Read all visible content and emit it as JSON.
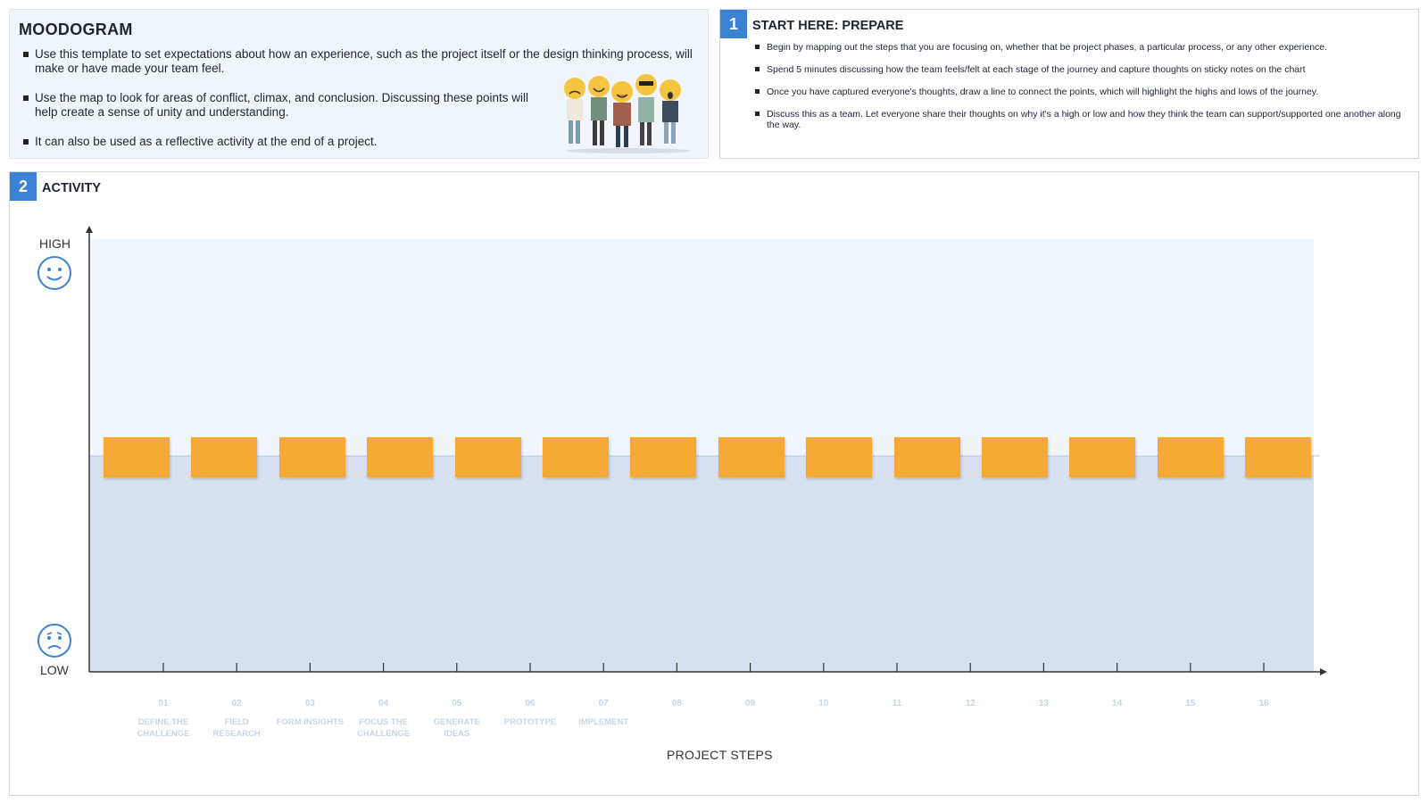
{
  "intro": {
    "title": "MOODOGRAM",
    "bullets": [
      "Use this template to set expectations about how an experience, such as the project itself or the design thinking process, will make or have made your team feel.",
      "Use the map to look for areas of conflict, climax, and conclusion.  Discussing these points will help create a sense of unity and understanding.",
      "It can also be used as a reflective activity at the end of a project."
    ],
    "illustration": "emoji-faced-people-illustration"
  },
  "prepare": {
    "number": "1",
    "title": "START HERE: PREPARE",
    "bullets": [
      "Begin by mapping out the steps that you are focusing on, whether that be project phases, a particular process, or any other experience.",
      "Spend 5 minutes discussing how the team feels/felt at each stage of the journey and capture thoughts on sticky notes on the chart",
      "Once you have captured everyone's thoughts, draw a line to connect the points, which will highlight the highs and lows of the journey.",
      "Discuss this as a team. Let everyone share their thoughts on why it's a high or low and how they think the team can support/supported one another along the way."
    ]
  },
  "activity": {
    "number": "2",
    "title": "ACTIVITY",
    "y_high": "HIGH",
    "y_low": "LOW",
    "x_title": "PROJECT STEPS",
    "high_icon": "smiley-face-icon",
    "low_icon": "sad-face-icon",
    "steps": [
      {
        "num": "01",
        "name": "DEFINE THE CHALLENGE"
      },
      {
        "num": "02",
        "name": "FIELD RESEARCH"
      },
      {
        "num": "03",
        "name": "FORM INSIGHTS"
      },
      {
        "num": "04",
        "name": "FOCUS THE CHALLENGE"
      },
      {
        "num": "05",
        "name": "GENERATE IDEAS"
      },
      {
        "num": "06",
        "name": "PROTOTYPE"
      },
      {
        "num": "07",
        "name": "IMPLEMENT"
      },
      {
        "num": "08",
        "name": ""
      },
      {
        "num": "09",
        "name": ""
      },
      {
        "num": "10",
        "name": ""
      },
      {
        "num": "11",
        "name": ""
      },
      {
        "num": "12",
        "name": ""
      },
      {
        "num": "13",
        "name": ""
      },
      {
        "num": "14",
        "name": ""
      },
      {
        "num": "15",
        "name": ""
      },
      {
        "num": "16",
        "name": ""
      }
    ],
    "sticky_note_count": 14,
    "colors": {
      "accent": "#3b82d6",
      "high_zone": "#f1f5fc",
      "low_zone": "#d8e1f1",
      "sticky_note": "#f7a936",
      "step_label": "#c9d4e6"
    }
  }
}
